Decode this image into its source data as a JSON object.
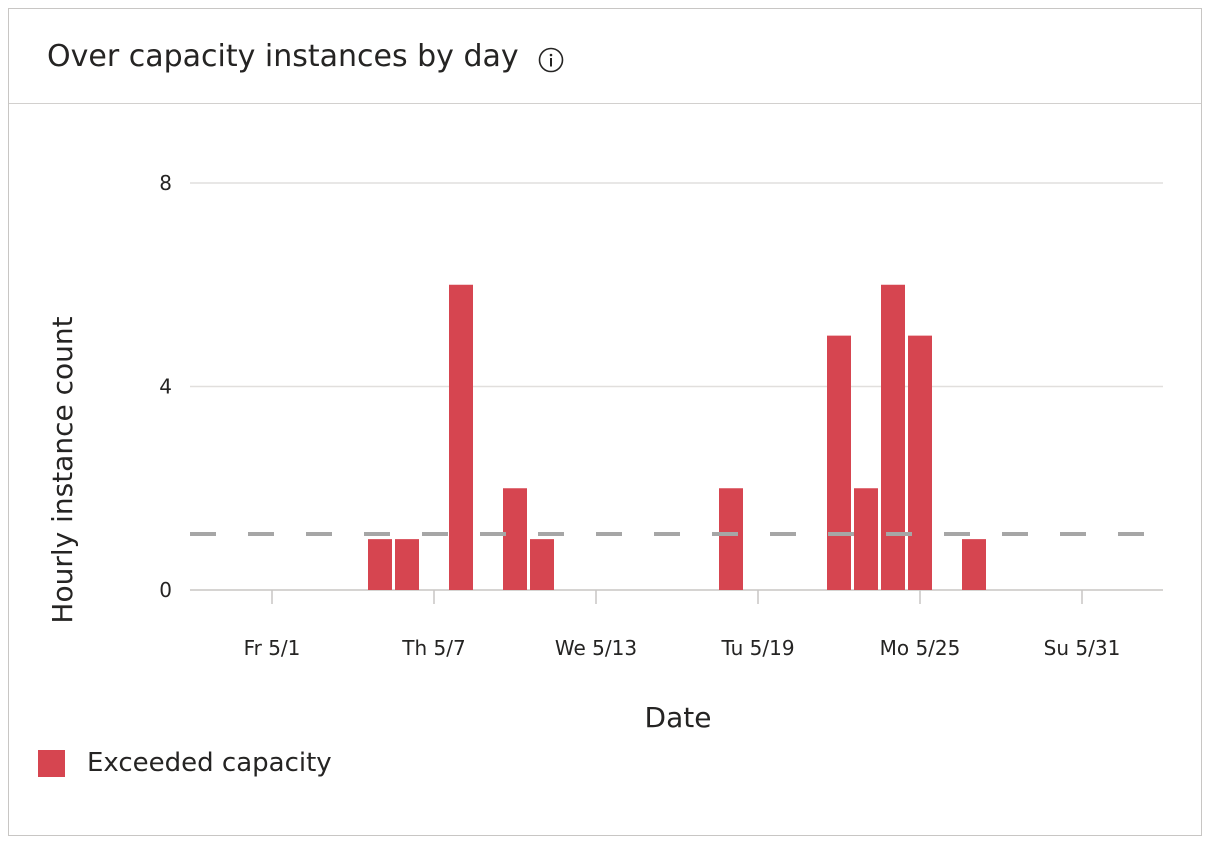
{
  "card": {
    "title": "Over capacity instances by day",
    "info_icon": "info-icon"
  },
  "chart_data": {
    "type": "bar",
    "title": "Over capacity instances by day",
    "xlabel": "Date",
    "ylabel": "Hourly instance count",
    "ylim": [
      0,
      8
    ],
    "y_ticks": [
      0,
      4,
      8
    ],
    "x_range": [
      "2020-04-28",
      "2020-06-03"
    ],
    "x_ticks": [
      {
        "date": "2020-05-01",
        "label": "Fr 5/1"
      },
      {
        "date": "2020-05-07",
        "label": "Th 5/7"
      },
      {
        "date": "2020-05-13",
        "label": "We 5/13"
      },
      {
        "date": "2020-05-19",
        "label": "Tu 5/19"
      },
      {
        "date": "2020-05-25",
        "label": "Mo 5/25"
      },
      {
        "date": "2020-05-31",
        "label": "Su 5/31"
      }
    ],
    "grid": true,
    "legend_position": "bottom-left",
    "series": [
      {
        "name": "Exceeded capacity",
        "color": "#d64550",
        "points": [
          {
            "x": "2020-05-05",
            "y": 1
          },
          {
            "x": "2020-05-06",
            "y": 1
          },
          {
            "x": "2020-05-08",
            "y": 6
          },
          {
            "x": "2020-05-10",
            "y": 2
          },
          {
            "x": "2020-05-11",
            "y": 1
          },
          {
            "x": "2020-05-18",
            "y": 2
          },
          {
            "x": "2020-05-22",
            "y": 5
          },
          {
            "x": "2020-05-23",
            "y": 2
          },
          {
            "x": "2020-05-24",
            "y": 6
          },
          {
            "x": "2020-05-25",
            "y": 5
          },
          {
            "x": "2020-05-27",
            "y": 1
          }
        ]
      }
    ],
    "reference_line": {
      "y": 1.1,
      "color": "#a6a6a6",
      "style": "dashed"
    },
    "grid_color": "#e1dfdd",
    "axis_color": "#c8c6c4"
  }
}
